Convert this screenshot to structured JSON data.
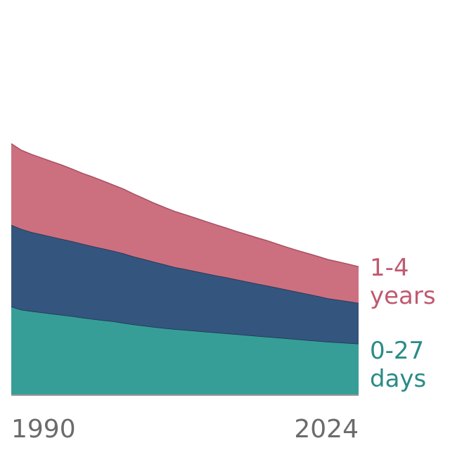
{
  "chart_data": {
    "type": "area",
    "stacked": true,
    "x_range": [
      1990,
      2024
    ],
    "x_tick_labels": [
      "1990",
      "2024"
    ],
    "grid": false,
    "legend": "direct labels at right end",
    "series": [
      {
        "key": "neonatal",
        "name": "0-27 days",
        "color": "#369e97",
        "values": [
          42,
          40.5,
          39.8,
          39.2,
          38.6,
          38,
          37.4,
          36.7,
          36.1,
          35.5,
          35,
          34.2,
          33.5,
          32.9,
          32.3,
          31.8,
          31.3,
          30.9,
          30.5,
          30.1,
          29.7,
          29.3,
          28.9,
          28.5,
          28.1,
          27.7,
          27.3,
          26.9,
          26.5,
          26.1,
          25.7,
          25.3,
          25,
          24.7,
          24.4
        ]
      },
      {
        "key": "postneonatal",
        "name": "",
        "color": "#34557e",
        "values": [
          38.7,
          38.3,
          37.5,
          37,
          36.5,
          36,
          35.5,
          35,
          34.5,
          34,
          33.4,
          33,
          32.2,
          31.6,
          30.9,
          30.2,
          29.4,
          28.9,
          28.3,
          27.7,
          27.1,
          26.6,
          26,
          25.4,
          24.8,
          24.3,
          23.7,
          23.1,
          22.5,
          21.9,
          21.3,
          20.6,
          20.2,
          19.8,
          19.3
        ]
      },
      {
        "key": "child",
        "name": "1-4 years",
        "color": "#cc7080",
        "values": [
          38.5,
          37.3,
          36.8,
          36.2,
          35.6,
          35,
          34.2,
          33.4,
          32.8,
          32,
          31.2,
          30.5,
          29.6,
          28.7,
          27.8,
          27,
          26.4,
          25.8,
          25.2,
          24.6,
          24,
          23.4,
          22.8,
          22.3,
          21.8,
          21.3,
          20.7,
          20.1,
          19.6,
          19.2,
          18.8,
          18.4,
          18,
          17.6,
          17.2
        ]
      }
    ]
  }
}
